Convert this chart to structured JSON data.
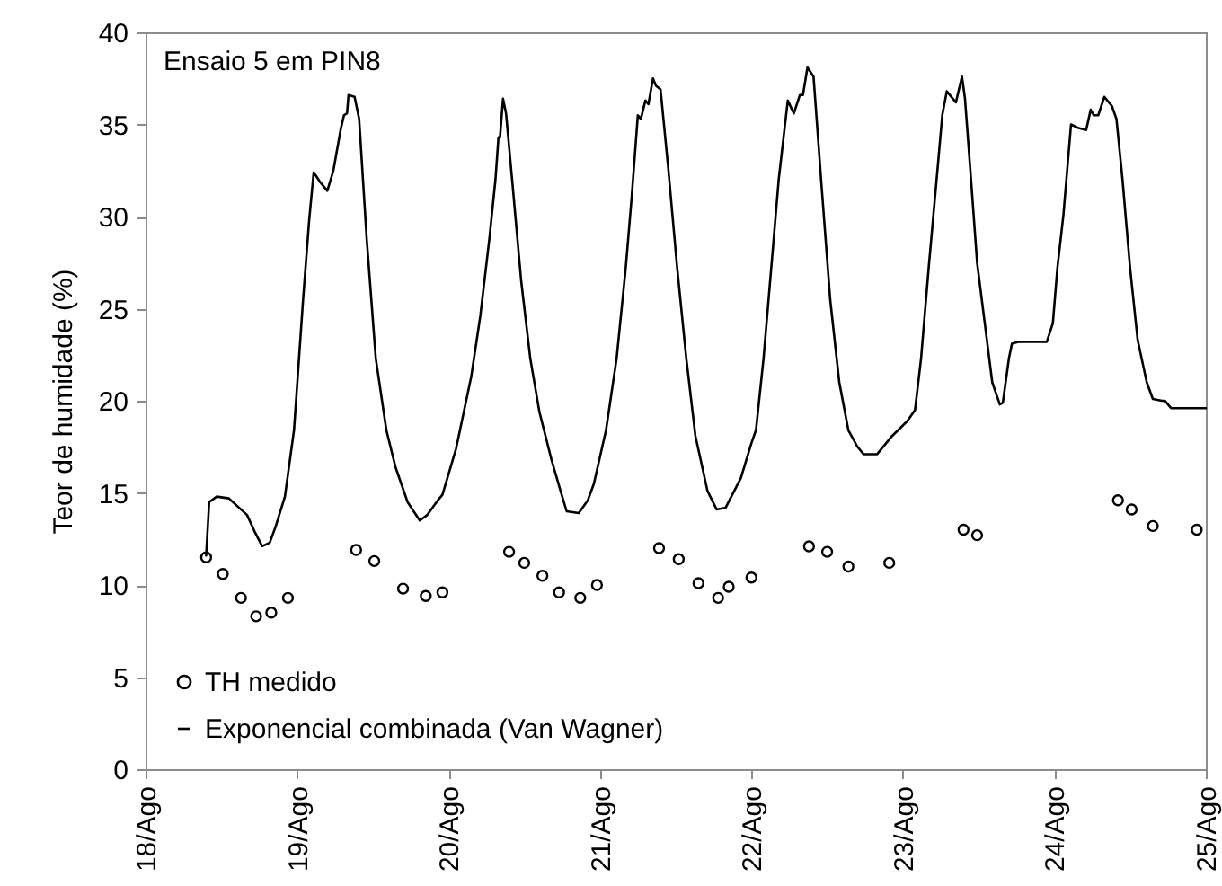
{
  "chart_data": {
    "type": "line",
    "title": "Ensaio 5 em PIN8",
    "ylabel": "Teor de humidade (%)",
    "xlim": [
      18,
      25
    ],
    "xticks": [
      {
        "value": 18,
        "label": "18/Ago"
      },
      {
        "value": 19,
        "label": "19/Ago"
      },
      {
        "value": 20,
        "label": "20/Ago"
      },
      {
        "value": 21,
        "label": "21/Ago"
      },
      {
        "value": 22,
        "label": "22/Ago"
      },
      {
        "value": 23,
        "label": "23/Ago"
      },
      {
        "value": 24,
        "label": "24/Ago"
      },
      {
        "value": 25,
        "label": "25/Ago"
      }
    ],
    "ylim": [
      0,
      40
    ],
    "yticks": [
      0,
      5,
      10,
      15,
      20,
      25,
      30,
      35,
      40
    ],
    "legend": "bottom left",
    "line_style": "solid",
    "series": [
      {
        "name": "TH medido",
        "type": "scatter",
        "marker": "circle",
        "color": "#000000",
        "x": [
          18.4,
          18.51,
          18.63,
          18.73,
          18.83,
          18.94,
          19.39,
          19.51,
          19.7,
          19.85,
          19.96,
          20.4,
          20.5,
          20.62,
          20.73,
          20.87,
          20.98,
          21.39,
          21.52,
          21.65,
          21.78,
          21.85,
          22.0,
          22.38,
          22.5,
          22.64,
          22.91,
          23.4,
          23.49,
          24.42,
          24.51,
          24.65,
          24.94
        ],
        "values": [
          11.5,
          10.6,
          9.3,
          8.3,
          8.5,
          9.3,
          11.9,
          11.3,
          9.8,
          9.4,
          9.6,
          11.8,
          11.2,
          10.5,
          9.6,
          9.3,
          10.0,
          12.0,
          11.4,
          10.1,
          9.3,
          9.9,
          10.4,
          12.1,
          11.8,
          11.0,
          11.2,
          13.0,
          12.7,
          14.6,
          14.1,
          13.2,
          13.0
        ]
      },
      {
        "name": "Exponencial combinada (Van Wagner)",
        "color": "#000000",
        "x": [
          18.4,
          18.42,
          18.47,
          18.55,
          18.67,
          18.72,
          18.77,
          18.82,
          18.86,
          18.92,
          18.98,
          19.04,
          19.08,
          19.11,
          19.15,
          19.2,
          19.24,
          19.29,
          19.31,
          19.33,
          19.34,
          19.38,
          19.41,
          19.46,
          19.52,
          19.59,
          19.65,
          19.73,
          19.81,
          19.86,
          19.93,
          19.96,
          20.05,
          20.15,
          20.21,
          20.27,
          20.31,
          20.33,
          20.34,
          20.36,
          20.38,
          20.42,
          20.48,
          20.54,
          20.6,
          20.68,
          20.74,
          20.78,
          20.86,
          20.92,
          20.96,
          21.04,
          21.11,
          21.17,
          21.21,
          21.25,
          21.27,
          21.3,
          21.32,
          21.35,
          21.37,
          21.4,
          21.45,
          21.51,
          21.57,
          21.63,
          21.71,
          21.77,
          21.83,
          21.93,
          22.0,
          22.03,
          22.08,
          22.14,
          22.18,
          22.24,
          22.28,
          22.32,
          22.34,
          22.37,
          22.41,
          22.46,
          22.52,
          22.58,
          22.64,
          22.7,
          22.74,
          22.83,
          22.93,
          23.03,
          23.08,
          23.12,
          23.17,
          23.23,
          23.26,
          23.29,
          23.33,
          23.35,
          23.39,
          23.41,
          23.45,
          23.49,
          23.55,
          23.59,
          23.64,
          23.66,
          23.7,
          23.72,
          23.76,
          23.95,
          23.99,
          24.02,
          24.06,
          24.11,
          24.16,
          24.21,
          24.24,
          24.26,
          24.29,
          24.33,
          24.35,
          24.38,
          24.41,
          24.45,
          24.5,
          24.55,
          24.61,
          24.65,
          24.71,
          24.73,
          24.77,
          25.0
        ],
        "values": [
          11.6,
          14.5,
          14.8,
          14.7,
          13.8,
          12.9,
          12.1,
          12.3,
          13.2,
          14.8,
          18.4,
          25.5,
          29.8,
          32.4,
          31.9,
          31.4,
          32.5,
          34.8,
          35.5,
          35.6,
          36.6,
          36.5,
          35.3,
          28.8,
          22.3,
          18.4,
          16.4,
          14.5,
          13.5,
          13.8,
          14.6,
          14.9,
          17.4,
          21.3,
          24.6,
          28.8,
          32.0,
          34.3,
          34.3,
          36.4,
          35.6,
          32.0,
          26.5,
          22.3,
          19.4,
          16.8,
          15.1,
          14.0,
          13.9,
          14.6,
          15.5,
          18.4,
          22.3,
          27.2,
          31.1,
          35.5,
          35.3,
          36.3,
          36.1,
          37.5,
          37.1,
          36.9,
          32.7,
          27.2,
          22.3,
          18.1,
          15.1,
          14.1,
          14.2,
          15.8,
          17.7,
          18.4,
          22.3,
          28.1,
          32.0,
          36.3,
          35.6,
          36.6,
          36.6,
          38.1,
          37.6,
          32.0,
          25.5,
          21.0,
          18.4,
          17.5,
          17.1,
          17.1,
          18.1,
          18.9,
          19.5,
          22.3,
          27.2,
          32.7,
          35.5,
          36.8,
          36.4,
          36.2,
          37.6,
          36.4,
          32.0,
          27.5,
          23.6,
          21.0,
          19.8,
          19.9,
          22.3,
          23.1,
          23.2,
          23.2,
          24.2,
          27.2,
          30.1,
          35.0,
          34.8,
          34.7,
          35.8,
          35.5,
          35.5,
          36.5,
          36.3,
          36.0,
          35.3,
          32.0,
          27.2,
          23.3,
          21.0,
          20.1,
          20.0,
          20.0,
          19.6,
          19.6
        ]
      }
    ]
  }
}
